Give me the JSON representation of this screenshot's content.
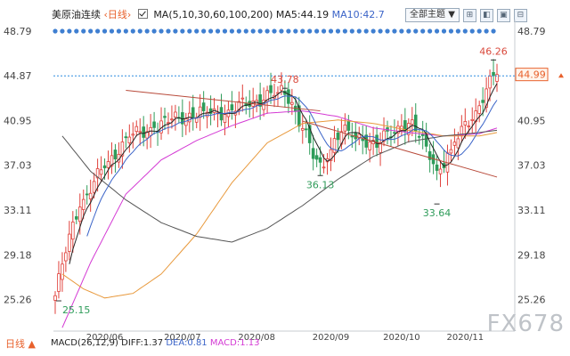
{
  "header": {
    "instrument": "美原油连续",
    "period_link": "‹日线›",
    "ma_label": "MA(5,10,30,60,100,200)",
    "ma5": "MA5:44.19",
    "ma10": "MA10:42.7"
  },
  "toolbar": {
    "theme_select": "全部主题",
    "theme_arrow": "▼",
    "buttons": [
      "⊞",
      "◧",
      "▣",
      "⊟"
    ]
  },
  "bottom": {
    "period_label": "日线",
    "period_arrow": "▲",
    "macd_label": "MACD(26,12,9)",
    "dif": "DIFF:1.37",
    "dea": "DEA:0.81",
    "macd": "MACD:1.13"
  },
  "watermark": "FX678",
  "colors": {
    "up": "#e0403a",
    "down": "#2f9c5a",
    "ma5": "#222222",
    "ma10": "#3b64c8",
    "ma30": "#d43ad4",
    "ma60": "#e8993c",
    "ma100": "#555555",
    "trend": "#b84a3a",
    "price_line": "#2d8be0",
    "current_price": "#e8612c"
  },
  "chart_data": {
    "type": "candlestick",
    "title": "美原油连续",
    "yticks": [
      "48.79",
      "44.87",
      "40.95",
      "37.03",
      "33.11",
      "29.18",
      "25.26"
    ],
    "ytick_values": [
      48.79,
      44.87,
      40.95,
      37.03,
      33.11,
      29.18,
      25.26
    ],
    "ylim": [
      22.5,
      49.8
    ],
    "x_labels": [
      "2020/06",
      "2020/07",
      "2020/08",
      "2020/09",
      "2020/10",
      "2020/11"
    ],
    "x_label_index": [
      14,
      36,
      57,
      78,
      98,
      116
    ],
    "n_bars": 126,
    "current_price": 44.99,
    "current_price_label": "44.99",
    "reference_price": "44.87",
    "annotations": [
      {
        "text": "46.26",
        "index": 124,
        "value": 46.26,
        "kind": "high"
      },
      {
        "text": "43.78",
        "index": 65,
        "value": 43.78,
        "kind": "high"
      },
      {
        "text": "36.13",
        "index": 75,
        "value": 36.13,
        "kind": "low"
      },
      {
        "text": "33.64",
        "index": 108,
        "value": 33.64,
        "kind": "low"
      },
      {
        "text": "25.15",
        "index": 1,
        "value": 25.15,
        "kind": "low"
      }
    ],
    "close_anchors": [
      [
        0,
        25.6
      ],
      [
        3,
        29.5
      ],
      [
        6,
        32.8
      ],
      [
        9,
        34.5
      ],
      [
        12,
        36.0
      ],
      [
        15,
        37.2
      ],
      [
        18,
        38.6
      ],
      [
        21,
        39.5
      ],
      [
        24,
        39.8
      ],
      [
        27,
        40.2
      ],
      [
        30,
        40.6
      ],
      [
        33,
        41.0
      ],
      [
        36,
        41.3
      ],
      [
        39,
        41.5
      ],
      [
        42,
        41.8
      ],
      [
        45,
        41.6
      ],
      [
        48,
        41.8
      ],
      [
        51,
        42.0
      ],
      [
        54,
        42.4
      ],
      [
        57,
        42.8
      ],
      [
        60,
        43.1
      ],
      [
        63,
        43.4
      ],
      [
        65,
        43.5
      ],
      [
        67,
        42.5
      ],
      [
        69,
        41.0
      ],
      [
        71,
        39.5
      ],
      [
        73,
        37.8
      ],
      [
        75,
        36.9
      ],
      [
        77,
        37.6
      ],
      [
        79,
        39.2
      ],
      [
        81,
        40.0
      ],
      [
        83,
        39.7
      ],
      [
        85,
        39.4
      ],
      [
        87,
        39.6
      ],
      [
        89,
        39.0
      ],
      [
        91,
        38.6
      ],
      [
        93,
        39.4
      ],
      [
        95,
        40.0
      ],
      [
        97,
        40.3
      ],
      [
        99,
        40.6
      ],
      [
        101,
        40.4
      ],
      [
        103,
        39.6
      ],
      [
        105,
        38.7
      ],
      [
        107,
        37.6
      ],
      [
        108,
        36.4
      ],
      [
        110,
        37.2
      ],
      [
        112,
        38.4
      ],
      [
        114,
        39.6
      ],
      [
        116,
        40.8
      ],
      [
        118,
        41.5
      ],
      [
        120,
        42.1
      ],
      [
        122,
        43.4
      ],
      [
        124,
        44.9
      ],
      [
        125,
        44.99
      ]
    ],
    "moving_averages": [
      {
        "name": "MA30",
        "points": [
          [
            2,
            22.8
          ],
          [
            10,
            28.5
          ],
          [
            20,
            34.5
          ],
          [
            30,
            37.5
          ],
          [
            40,
            39.2
          ],
          [
            50,
            40.5
          ],
          [
            60,
            41.6
          ],
          [
            70,
            41.8
          ],
          [
            80,
            41.3
          ],
          [
            90,
            40.3
          ],
          [
            100,
            39.9
          ],
          [
            110,
            39.6
          ],
          [
            120,
            39.8
          ],
          [
            125,
            40.3
          ]
        ]
      },
      {
        "name": "MA60",
        "points": [
          [
            2,
            27.5
          ],
          [
            8,
            26.2
          ],
          [
            14,
            25.4
          ],
          [
            22,
            25.8
          ],
          [
            30,
            27.5
          ],
          [
            40,
            31.0
          ],
          [
            50,
            35.5
          ],
          [
            60,
            39.0
          ],
          [
            70,
            40.7
          ],
          [
            80,
            41.0
          ],
          [
            90,
            40.7
          ],
          [
            100,
            40.1
          ],
          [
            110,
            39.6
          ],
          [
            120,
            39.6
          ],
          [
            125,
            39.9
          ]
        ]
      },
      {
        "name": "MA100",
        "points": [
          [
            2,
            39.6
          ],
          [
            10,
            36.5
          ],
          [
            20,
            34.0
          ],
          [
            30,
            32.0
          ],
          [
            40,
            30.8
          ],
          [
            50,
            30.3
          ],
          [
            60,
            31.5
          ],
          [
            70,
            33.5
          ],
          [
            80,
            35.8
          ],
          [
            90,
            37.8
          ],
          [
            100,
            39.1
          ],
          [
            110,
            39.6
          ],
          [
            120,
            39.9
          ],
          [
            125,
            40.1
          ]
        ]
      }
    ],
    "trend_lines": [
      {
        "points": [
          [
            20,
            43.6
          ],
          [
            75,
            41.8
          ]
        ]
      },
      {
        "points": [
          [
            70,
            40.9
          ],
          [
            125,
            36.0
          ]
        ]
      }
    ]
  }
}
